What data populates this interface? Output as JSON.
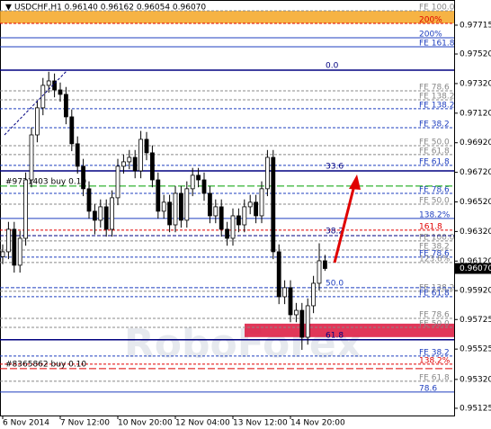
{
  "chart_data": {
    "type": "candlestick",
    "title": "USDCHF,H1 0.96140 0.96162 0.96054 0.96070",
    "watermark": "RoboForex",
    "ylim": [
      0.95076,
      0.97885
    ],
    "yticks": [
      {
        "value": 0.97715,
        "label": "0.97715"
      },
      {
        "value": 0.9752,
        "label": "0.97520"
      },
      {
        "value": 0.9732,
        "label": "0.97320"
      },
      {
        "value": 0.9712,
        "label": "0.97120"
      },
      {
        "value": 0.9692,
        "label": "0.96920"
      },
      {
        "value": 0.9672,
        "label": "0.96720"
      },
      {
        "value": 0.9652,
        "label": "0.96520"
      },
      {
        "value": 0.9632,
        "label": "0.96320"
      },
      {
        "value": 0.9612,
        "label": "0.96120"
      },
      {
        "value": 0.9592,
        "label": "0.95920"
      },
      {
        "value": 0.95725,
        "label": "0.95725"
      },
      {
        "value": 0.95525,
        "label": "0.95525"
      },
      {
        "value": 0.9532,
        "label": "0.95320"
      },
      {
        "value": 0.95125,
        "label": "0.95125"
      }
    ],
    "last_price": {
      "value": 0.9607,
      "label": "0.96070"
    },
    "categories": [
      "6 Nov 2014",
      null,
      null,
      null,
      null,
      null,
      null,
      null,
      null,
      null,
      "7 Nov 12:00",
      null,
      null,
      null,
      null,
      null,
      null,
      null,
      null,
      null,
      "10 Nov 20:00",
      null,
      null,
      null,
      null,
      null,
      null,
      null,
      null,
      null,
      "12 Nov 04:00",
      null,
      null,
      null,
      null,
      null,
      null,
      null,
      null,
      null,
      "13 Nov 12:00",
      null,
      null,
      null,
      null,
      null,
      null,
      null,
      null,
      null,
      "14 Nov 20:00",
      null,
      null,
      null,
      null,
      null,
      null
    ],
    "open": [
      0.9615,
      0.96183,
      0.96335,
      0.96092,
      0.96274,
      0.96669,
      0.96973,
      0.97156,
      0.97308,
      0.97338,
      0.97277,
      0.97247,
      0.97095,
      0.96913,
      0.96761,
      0.96609,
      0.96457,
      0.96396,
      0.96487,
      0.96335,
      0.96548,
      0.96761,
      0.96791,
      0.96821,
      0.9673,
      0.96943,
      0.96852,
      0.96669,
      0.96457,
      0.96518,
      0.96365,
      0.96578,
      0.96396,
      0.96609,
      0.967,
      0.96669,
      0.96578,
      0.96426,
      0.96487,
      0.96335,
      0.96274,
      0.96426,
      0.96365,
      0.96487,
      0.96518,
      0.96426,
      0.96609,
      0.96821,
      0.96183,
      0.95879,
      0.9594,
      0.95757,
      0.95787,
      0.95605,
      0.95818,
      0.9597,
      0.96122
    ],
    "high": [
      0.96233,
      0.96385,
      0.96385,
      0.96324,
      0.96719,
      0.97023,
      0.97206,
      0.97358,
      0.974,
      0.97388,
      0.97327,
      0.97297,
      0.97145,
      0.96963,
      0.96811,
      0.96659,
      0.96507,
      0.96537,
      0.96537,
      0.96598,
      0.96811,
      0.96841,
      0.96871,
      0.96871,
      0.97,
      0.96993,
      0.96902,
      0.96719,
      0.96568,
      0.96568,
      0.96628,
      0.96628,
      0.96659,
      0.9675,
      0.9675,
      0.96719,
      0.96628,
      0.96537,
      0.96537,
      0.96385,
      0.96476,
      0.96476,
      0.96537,
      0.96568,
      0.96568,
      0.96659,
      0.96871,
      0.96871,
      0.96233,
      0.9599,
      0.9599,
      0.95837,
      0.95837,
      0.95868,
      0.9602,
      0.9624,
      0.96162
    ],
    "low": [
      0.961,
      0.96133,
      0.96042,
      0.96042,
      0.96224,
      0.96619,
      0.96923,
      0.97106,
      0.97258,
      0.97227,
      0.97197,
      0.97045,
      0.96863,
      0.96711,
      0.96559,
      0.96407,
      0.963,
      0.96346,
      0.96285,
      0.96285,
      0.96498,
      0.96711,
      0.96741,
      0.9668,
      0.9668,
      0.96802,
      0.96619,
      0.96407,
      0.96407,
      0.96315,
      0.96315,
      0.96346,
      0.96346,
      0.96559,
      0.96619,
      0.96528,
      0.96376,
      0.96376,
      0.96285,
      0.96224,
      0.96224,
      0.96315,
      0.96315,
      0.96437,
      0.96376,
      0.96376,
      0.96559,
      0.96133,
      0.95829,
      0.95829,
      0.95707,
      0.95707,
      0.9552,
      0.95555,
      0.95768,
      0.9592,
      0.96054
    ],
    "close": [
      0.96183,
      0.96335,
      0.96092,
      0.96274,
      0.96669,
      0.96973,
      0.97156,
      0.97308,
      0.97338,
      0.97277,
      0.97247,
      0.97095,
      0.96913,
      0.96761,
      0.96609,
      0.96457,
      0.96396,
      0.96487,
      0.96335,
      0.96548,
      0.96761,
      0.96791,
      0.96821,
      0.9673,
      0.96943,
      0.96852,
      0.96669,
      0.96457,
      0.96518,
      0.96365,
      0.96578,
      0.96396,
      0.96609,
      0.967,
      0.96669,
      0.96578,
      0.96426,
      0.96487,
      0.96335,
      0.96274,
      0.96426,
      0.96365,
      0.96487,
      0.96518,
      0.96426,
      0.96609,
      0.96821,
      0.96183,
      0.95879,
      0.9594,
      0.95757,
      0.95787,
      0.95605,
      0.95818,
      0.9597,
      0.96122,
      0.9607
    ],
    "zones": [
      {
        "from": 0.97727,
        "to": 0.97812,
        "color": "#f5a623"
      },
      {
        "from": 0.95606,
        "to": 0.95697,
        "color": "#dc143c"
      }
    ],
    "levels": [
      {
        "label": "FE 100.0",
        "value": 0.97812,
        "color": "#888888",
        "dash": true
      },
      {
        "label": "200%",
        "value": 0.97727,
        "color": "#e00000",
        "dash": true
      },
      {
        "label": "200%",
        "value": 0.9763,
        "color": "#1f3fbf",
        "dash": false
      },
      {
        "label": "FE 161.8",
        "value": 0.97569,
        "color": "#1f3fbf",
        "dash": false
      },
      {
        "label": "FE 78.6",
        "value": 0.97271,
        "color": "#888888",
        "dash": true
      },
      {
        "label": "FE 138.2",
        "value": 0.9721,
        "color": "#888888",
        "dash": true
      },
      {
        "label": "FE 138.2",
        "value": 0.9715,
        "color": "#1f3fbf",
        "dash": true
      },
      {
        "label": "FE 38.2",
        "value": 0.97022,
        "color": "#1f3fbf",
        "dash": true
      },
      {
        "label": "FE 50.0",
        "value": 0.969,
        "color": "#888888",
        "dash": true
      },
      {
        "label": "FE 61.8",
        "value": 0.9684,
        "color": "#888888",
        "dash": true
      },
      {
        "label": "FE 61.8",
        "value": 0.96767,
        "color": "#1f3fbf",
        "dash": true
      },
      {
        "label": "FE 78.6",
        "value": 0.96578,
        "color": "#1f3fbf",
        "dash": true
      },
      {
        "label": "FE 50.0",
        "value": 0.96505,
        "color": "#888888",
        "dash": true
      },
      {
        "label": "138.2%",
        "value": 0.96408,
        "color": "#1f3fbf",
        "dash": false
      },
      {
        "label": "161.8",
        "value": 0.96329,
        "color": "#e00000",
        "dash": true
      },
      {
        "label": "FE 100.0",
        "value": 0.96256,
        "color": "#888888",
        "dash": true
      },
      {
        "label": "FE 38.2",
        "value": 0.96195,
        "color": "#888888",
        "dash": true
      },
      {
        "label": "FE 78.6",
        "value": 0.96147,
        "color": "#1f3fbf",
        "dash": true
      },
      {
        "label": "123.6%",
        "value": 0.9611,
        "color": "#888888",
        "dash": true
      },
      {
        "label": "FE 138.2",
        "value": 0.95916,
        "color": "#888888",
        "dash": true
      },
      {
        "label": "FE 61.8",
        "value": 0.95879,
        "color": "#1f3fbf",
        "dash": true
      },
      {
        "label": "FE 78.6",
        "value": 0.95733,
        "color": "#888888",
        "dash": true
      },
      {
        "label": "FE 50.0",
        "value": 0.95672,
        "color": "#888888",
        "dash": true
      },
      {
        "label": "FE 38.2",
        "value": 0.95478,
        "color": "#1f3fbf",
        "dash": true
      },
      {
        "label": "138.2%",
        "value": 0.95423,
        "color": "#e00000",
        "dash": true
      },
      {
        "label": "FE 61.8",
        "value": 0.95308,
        "color": "#888888",
        "dash": true
      },
      {
        "label": "78.6",
        "value": 0.95235,
        "color": "#1f3fbf",
        "dash": false
      }
    ],
    "fibo_levels": [
      {
        "label": "0.0",
        "value": 0.97411,
        "color": "#000080",
        "dash": false
      },
      {
        "label": "33.6",
        "value": 0.9673,
        "color": "#000080",
        "dash": false
      },
      {
        "label": "38.2",
        "value": 0.96292,
        "color": "#000080",
        "dash": true
      },
      {
        "label": "50.0",
        "value": 0.9594,
        "color": "#1f3fbf",
        "dash": true
      },
      {
        "label": "61.8",
        "value": 0.95588,
        "color": "#000080",
        "dash": false
      }
    ],
    "orders": [
      {
        "label": "#9721403 buy 0.10",
        "value": 0.96627,
        "color": "#00a000"
      },
      {
        "label": "#8365862 buy 0.10",
        "value": 0.95393,
        "color": "#e00000"
      }
    ]
  }
}
